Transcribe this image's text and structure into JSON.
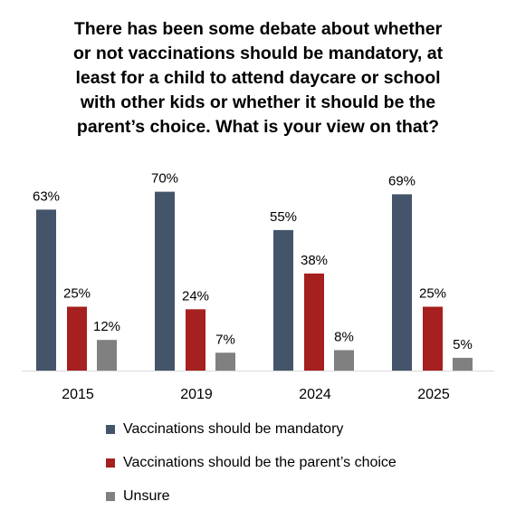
{
  "chart_data": {
    "type": "bar",
    "title": "There has been some debate about whether or not vaccinations should be mandatory, at least for a child to attend daycare or school with other kids or whether it should be the parent’s choice. What is your view on that?",
    "title_lines": [
      "There has been some debate about whether",
      "or not vaccinations should be mandatory, at",
      "least for a child to attend daycare or school",
      "with other kids or whether it should be the",
      "parent’s choice. What is your view on that?"
    ],
    "categories": [
      "2015",
      "2019",
      "2024",
      "2025"
    ],
    "series": [
      {
        "name": "Vaccinations should be mandatory",
        "values": [
          63,
          70,
          55,
          69
        ],
        "labels": [
          "63%",
          "70%",
          "55%",
          "69%"
        ],
        "color": "#44546a"
      },
      {
        "name": "Vaccinations should be the parent’s choice",
        "values": [
          25,
          24,
          38,
          25
        ],
        "labels": [
          "25%",
          "24%",
          "38%",
          "25%"
        ],
        "color": "#a5201e"
      },
      {
        "name": "Unsure",
        "values": [
          12,
          7,
          8,
          5
        ],
        "labels": [
          "12%",
          "7%",
          "8%",
          "5%"
        ],
        "color": "#808080"
      }
    ],
    "xlabel": "",
    "ylabel": "",
    "ylim": [
      0,
      70
    ],
    "grid": false,
    "legend_position": "bottom",
    "axis_color": "#d9d9d9"
  }
}
